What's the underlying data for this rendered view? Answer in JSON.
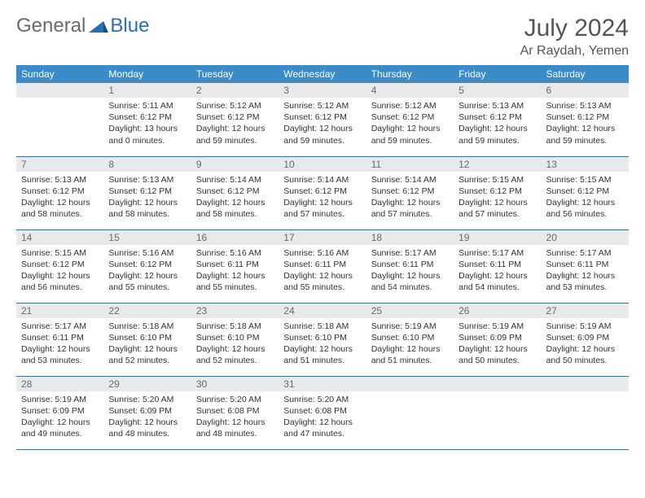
{
  "logo": {
    "general": "General",
    "blue": "Blue"
  },
  "title": "July 2024",
  "location": "Ar Raydah, Yemen",
  "colors": {
    "header_bg": "#3b8bc8",
    "header_text": "#ffffff",
    "daynum_bg": "#e8e9ea",
    "daynum_text": "#6a6a6a",
    "row_border": "#3b6fa0",
    "logo_gray": "#6a6a6a",
    "logo_blue": "#2a6fb5"
  },
  "weekdays": [
    "Sunday",
    "Monday",
    "Tuesday",
    "Wednesday",
    "Thursday",
    "Friday",
    "Saturday"
  ],
  "weeks": [
    [
      null,
      {
        "n": "1",
        "sunrise": "5:11 AM",
        "sunset": "6:12 PM",
        "daylight": "13 hours and 0 minutes."
      },
      {
        "n": "2",
        "sunrise": "5:12 AM",
        "sunset": "6:12 PM",
        "daylight": "12 hours and 59 minutes."
      },
      {
        "n": "3",
        "sunrise": "5:12 AM",
        "sunset": "6:12 PM",
        "daylight": "12 hours and 59 minutes."
      },
      {
        "n": "4",
        "sunrise": "5:12 AM",
        "sunset": "6:12 PM",
        "daylight": "12 hours and 59 minutes."
      },
      {
        "n": "5",
        "sunrise": "5:13 AM",
        "sunset": "6:12 PM",
        "daylight": "12 hours and 59 minutes."
      },
      {
        "n": "6",
        "sunrise": "5:13 AM",
        "sunset": "6:12 PM",
        "daylight": "12 hours and 59 minutes."
      }
    ],
    [
      {
        "n": "7",
        "sunrise": "5:13 AM",
        "sunset": "6:12 PM",
        "daylight": "12 hours and 58 minutes."
      },
      {
        "n": "8",
        "sunrise": "5:13 AM",
        "sunset": "6:12 PM",
        "daylight": "12 hours and 58 minutes."
      },
      {
        "n": "9",
        "sunrise": "5:14 AM",
        "sunset": "6:12 PM",
        "daylight": "12 hours and 58 minutes."
      },
      {
        "n": "10",
        "sunrise": "5:14 AM",
        "sunset": "6:12 PM",
        "daylight": "12 hours and 57 minutes."
      },
      {
        "n": "11",
        "sunrise": "5:14 AM",
        "sunset": "6:12 PM",
        "daylight": "12 hours and 57 minutes."
      },
      {
        "n": "12",
        "sunrise": "5:15 AM",
        "sunset": "6:12 PM",
        "daylight": "12 hours and 57 minutes."
      },
      {
        "n": "13",
        "sunrise": "5:15 AM",
        "sunset": "6:12 PM",
        "daylight": "12 hours and 56 minutes."
      }
    ],
    [
      {
        "n": "14",
        "sunrise": "5:15 AM",
        "sunset": "6:12 PM",
        "daylight": "12 hours and 56 minutes."
      },
      {
        "n": "15",
        "sunrise": "5:16 AM",
        "sunset": "6:12 PM",
        "daylight": "12 hours and 55 minutes."
      },
      {
        "n": "16",
        "sunrise": "5:16 AM",
        "sunset": "6:11 PM",
        "daylight": "12 hours and 55 minutes."
      },
      {
        "n": "17",
        "sunrise": "5:16 AM",
        "sunset": "6:11 PM",
        "daylight": "12 hours and 55 minutes."
      },
      {
        "n": "18",
        "sunrise": "5:17 AM",
        "sunset": "6:11 PM",
        "daylight": "12 hours and 54 minutes."
      },
      {
        "n": "19",
        "sunrise": "5:17 AM",
        "sunset": "6:11 PM",
        "daylight": "12 hours and 54 minutes."
      },
      {
        "n": "20",
        "sunrise": "5:17 AM",
        "sunset": "6:11 PM",
        "daylight": "12 hours and 53 minutes."
      }
    ],
    [
      {
        "n": "21",
        "sunrise": "5:17 AM",
        "sunset": "6:11 PM",
        "daylight": "12 hours and 53 minutes."
      },
      {
        "n": "22",
        "sunrise": "5:18 AM",
        "sunset": "6:10 PM",
        "daylight": "12 hours and 52 minutes."
      },
      {
        "n": "23",
        "sunrise": "5:18 AM",
        "sunset": "6:10 PM",
        "daylight": "12 hours and 52 minutes."
      },
      {
        "n": "24",
        "sunrise": "5:18 AM",
        "sunset": "6:10 PM",
        "daylight": "12 hours and 51 minutes."
      },
      {
        "n": "25",
        "sunrise": "5:19 AM",
        "sunset": "6:10 PM",
        "daylight": "12 hours and 51 minutes."
      },
      {
        "n": "26",
        "sunrise": "5:19 AM",
        "sunset": "6:09 PM",
        "daylight": "12 hours and 50 minutes."
      },
      {
        "n": "27",
        "sunrise": "5:19 AM",
        "sunset": "6:09 PM",
        "daylight": "12 hours and 50 minutes."
      }
    ],
    [
      {
        "n": "28",
        "sunrise": "5:19 AM",
        "sunset": "6:09 PM",
        "daylight": "12 hours and 49 minutes."
      },
      {
        "n": "29",
        "sunrise": "5:20 AM",
        "sunset": "6:09 PM",
        "daylight": "12 hours and 48 minutes."
      },
      {
        "n": "30",
        "sunrise": "5:20 AM",
        "sunset": "6:08 PM",
        "daylight": "12 hours and 48 minutes."
      },
      {
        "n": "31",
        "sunrise": "5:20 AM",
        "sunset": "6:08 PM",
        "daylight": "12 hours and 47 minutes."
      },
      null,
      null,
      null
    ]
  ],
  "labels": {
    "sunrise": "Sunrise:",
    "sunset": "Sunset:",
    "daylight": "Daylight:"
  }
}
